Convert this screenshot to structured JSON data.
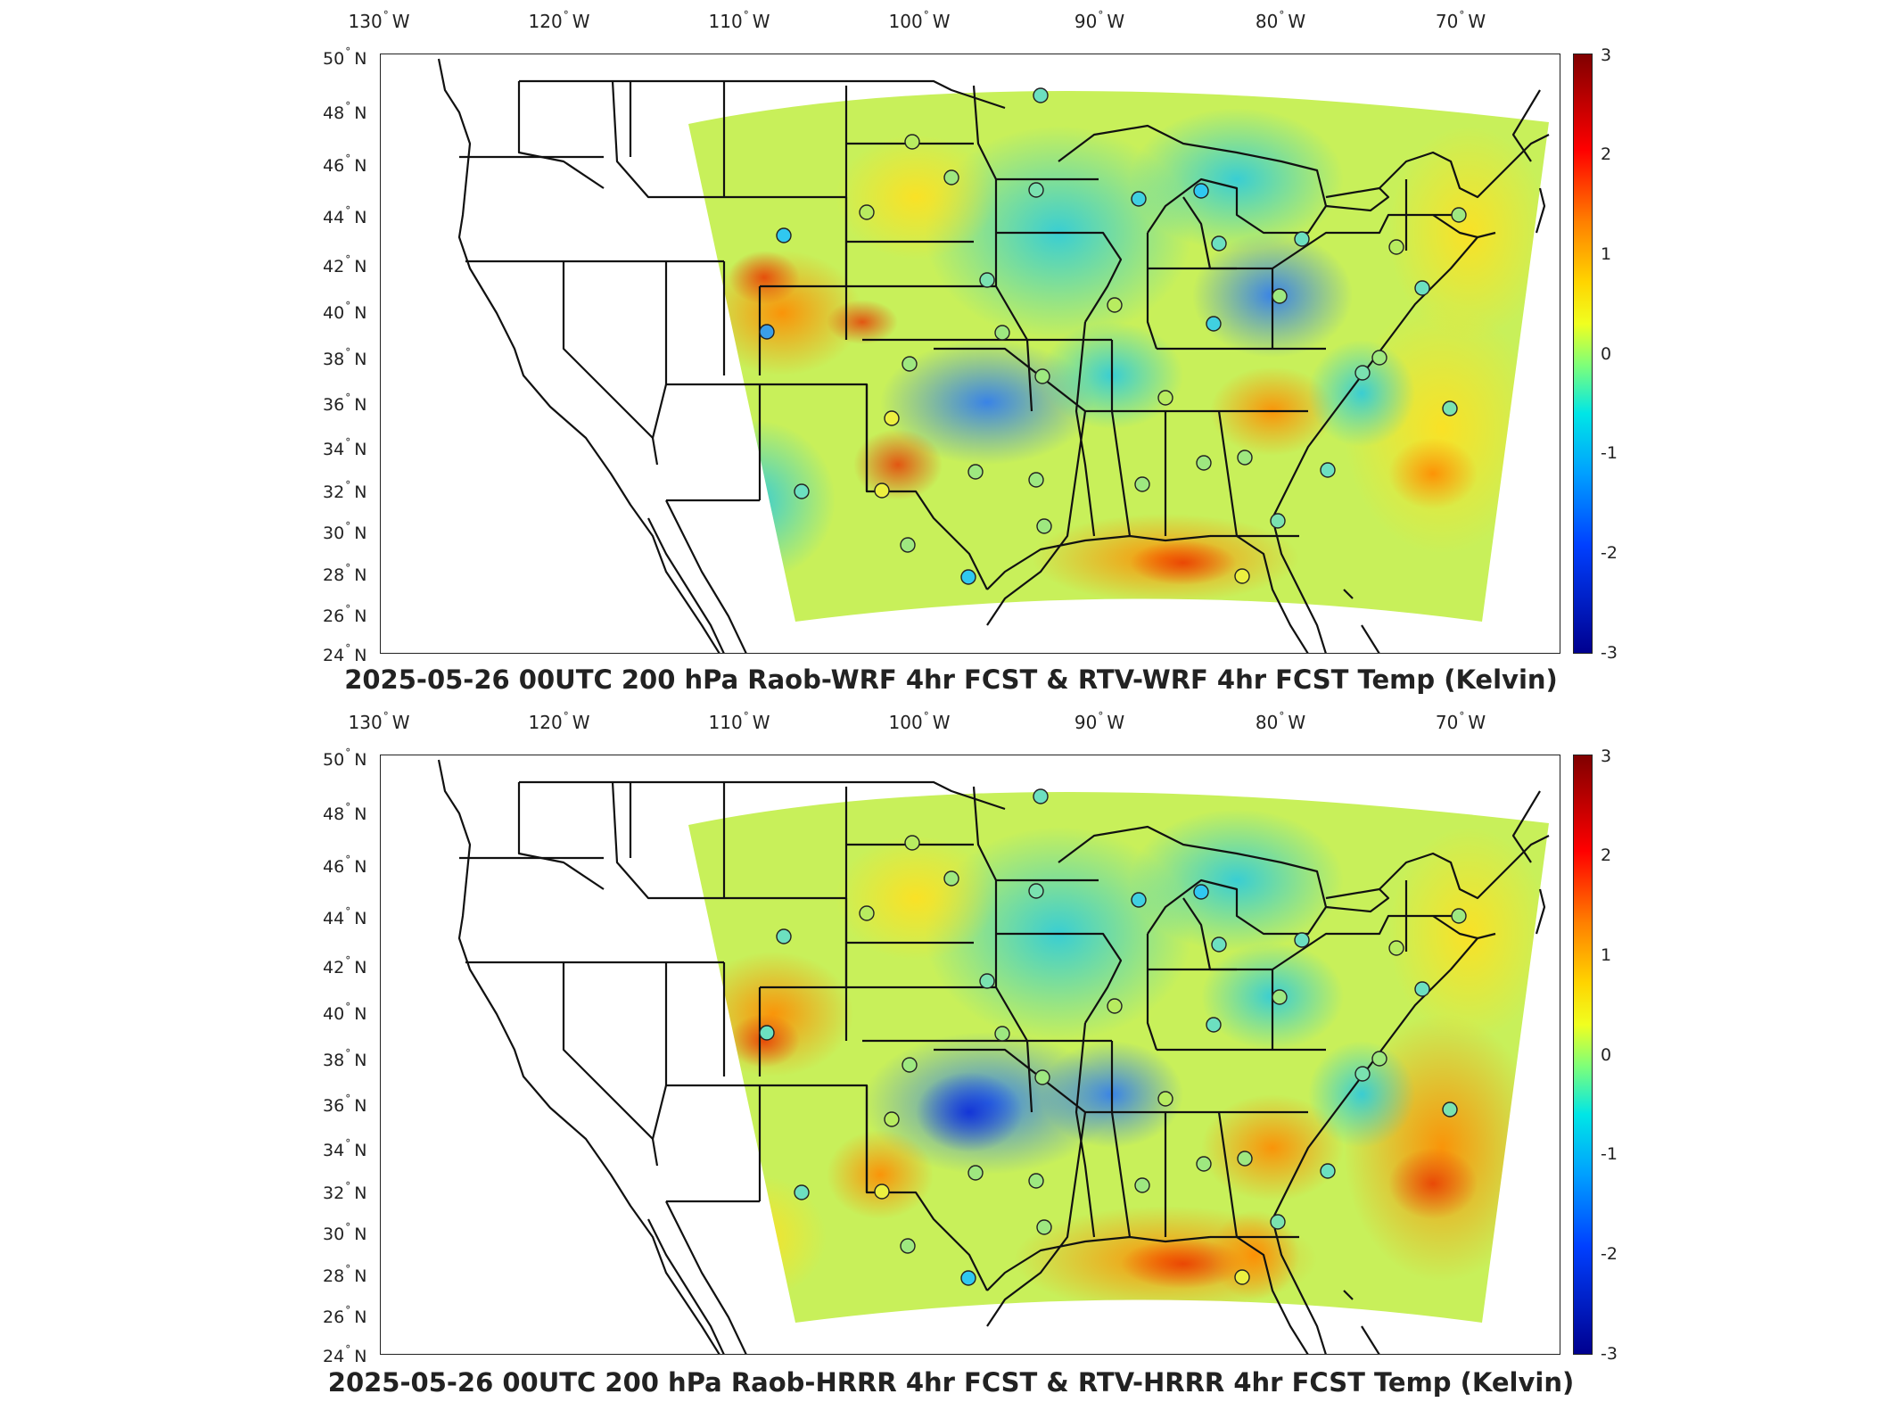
{
  "map_title_top": "2025-05-26 00UTC 200 hPa Raob-WRF 4hr FCST & RTV-WRF 4hr FCST Temp (Kelvin)",
  "map_title_bottom": "2025-05-26 00UTC 200 hPa Raob-HRRR 4hr FCST & RTV-HRRR 4hr FCST Temp (Kelvin)",
  "longitude_ticks": [
    "130",
    "120",
    "110",
    "100",
    "90",
    "80",
    "70"
  ],
  "longitude_suffix": "W",
  "latitude_ticks": [
    "50",
    "48",
    "46",
    "44",
    "42",
    "40",
    "38",
    "36",
    "34",
    "32",
    "30",
    "28",
    "26",
    "24"
  ],
  "latitude_suffix": "N",
  "degree_symbol": "°",
  "colorbar": {
    "ticks": [
      "3",
      "2",
      "1",
      "0",
      "-1",
      "-2",
      "-3"
    ],
    "range": [
      -3,
      3
    ],
    "colors": [
      "#00008f",
      "#0040ff",
      "#00a0ff",
      "#00e6e6",
      "#7dff7a",
      "#f0ff20",
      "#ffd400",
      "#ff8000",
      "#ff0000",
      "#800000"
    ]
  },
  "colors": {
    "field_base": "#c8f05a",
    "outline": "#111111"
  }
}
